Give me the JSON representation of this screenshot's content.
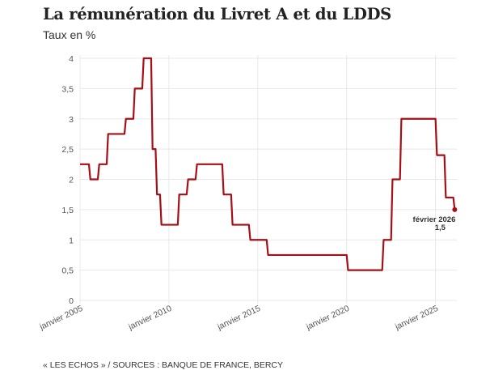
{
  "header": {
    "title": "La rémunération du Livret A et du LDDS",
    "subtitle": "Taux en %"
  },
  "footer": {
    "source": "« LES ECHOS » / SOURCES : BANQUE DE FRANCE, BERCY"
  },
  "colors": {
    "line": "#a50f15",
    "grid": "#e8e8e8"
  },
  "chart_data": {
    "type": "line",
    "title": "La rémunération du Livret A et du LDDS",
    "subtitle": "Taux en %",
    "xlabel": "",
    "ylabel": "Taux en %",
    "ylim": [
      0,
      4
    ],
    "xlim": [
      2005.0,
      2026.2
    ],
    "grid": true,
    "yticks": [
      0,
      0.5,
      1,
      1.5,
      2,
      2.5,
      3,
      3.5,
      4
    ],
    "ytick_labels": [
      "0",
      "0,5",
      "1",
      "1,5",
      "2",
      "2,5",
      "3",
      "3,5",
      "4"
    ],
    "xticks": [
      2005,
      2010,
      2015,
      2020,
      2025
    ],
    "xtick_labels": [
      "janvier 2005",
      "janvier 2010",
      "janvier 2015",
      "janvier 2020",
      "janvier 2025"
    ],
    "series": [
      {
        "name": "Livret A / LDDS",
        "step": true,
        "points": [
          {
            "date": "2005-01",
            "x": 2005.0,
            "y": 2.25
          },
          {
            "date": "2005-08",
            "x": 2005.58,
            "y": 2.0
          },
          {
            "date": "2006-02",
            "x": 2006.08,
            "y": 2.25
          },
          {
            "date": "2006-08",
            "x": 2006.58,
            "y": 2.75
          },
          {
            "date": "2007-08",
            "x": 2007.58,
            "y": 3.0
          },
          {
            "date": "2008-02",
            "x": 2008.08,
            "y": 3.5
          },
          {
            "date": "2008-08",
            "x": 2008.58,
            "y": 4.0
          },
          {
            "date": "2009-02",
            "x": 2009.08,
            "y": 2.5
          },
          {
            "date": "2009-05",
            "x": 2009.33,
            "y": 1.75
          },
          {
            "date": "2009-08",
            "x": 2009.58,
            "y": 1.25
          },
          {
            "date": "2010-08",
            "x": 2010.58,
            "y": 1.75
          },
          {
            "date": "2011-02",
            "x": 2011.08,
            "y": 2.0
          },
          {
            "date": "2011-08",
            "x": 2011.58,
            "y": 2.25
          },
          {
            "date": "2013-02",
            "x": 2013.08,
            "y": 1.75
          },
          {
            "date": "2013-08",
            "x": 2013.58,
            "y": 1.25
          },
          {
            "date": "2014-08",
            "x": 2014.58,
            "y": 1.0
          },
          {
            "date": "2015-08",
            "x": 2015.58,
            "y": 0.75
          },
          {
            "date": "2020-02",
            "x": 2020.08,
            "y": 0.5
          },
          {
            "date": "2022-02",
            "x": 2022.08,
            "y": 1.0
          },
          {
            "date": "2022-08",
            "x": 2022.58,
            "y": 2.0
          },
          {
            "date": "2023-02",
            "x": 2023.08,
            "y": 3.0
          },
          {
            "date": "2025-02",
            "x": 2025.08,
            "y": 2.4
          },
          {
            "date": "2025-08",
            "x": 2025.58,
            "y": 1.7
          },
          {
            "date": "2026-02",
            "x": 2026.08,
            "y": 1.5
          }
        ]
      }
    ],
    "annotation": {
      "label": "février 2026",
      "value_label": "1,5",
      "x": 2026.08,
      "y": 1.5
    }
  }
}
